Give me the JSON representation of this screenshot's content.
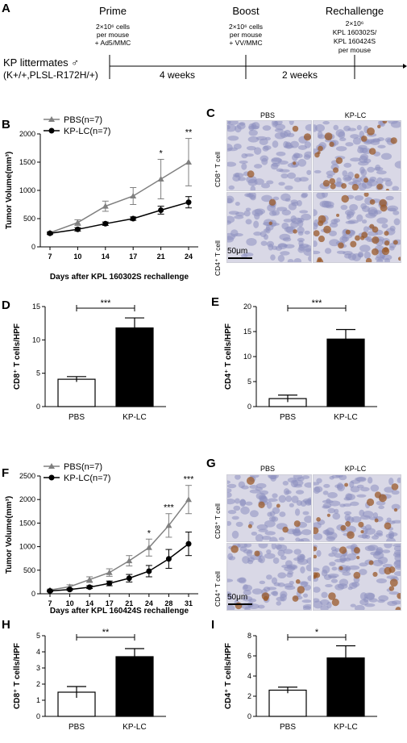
{
  "panels": {
    "A": "A",
    "B": "B",
    "C": "C",
    "D": "D",
    "E": "E",
    "F": "F",
    "G": "G",
    "H": "H",
    "I": "I"
  },
  "timeline": {
    "prime_title": "Prime",
    "prime_line1": "2×10⁶ cells",
    "prime_line2": "per mouse",
    "prime_line3": "+ Ad5/MMC",
    "boost_title": "Boost",
    "boost_line1": "2×10⁶ cells",
    "boost_line2": "per mouse",
    "boost_line3": "+ VV/MMC",
    "rechallenge_title": "Rechallenge",
    "rechallenge_line1": "2×10⁶",
    "rechallenge_line2": "KPL 160302S/",
    "rechallenge_line3": "KPL 160424S",
    "rechallenge_line4": "per mouse",
    "mice_label": "KP littermates ♂",
    "genotype": "(K+/+,PLSL-R172H/+)",
    "interval1": "4 weeks",
    "interval2": "2 weeks"
  },
  "ihc": {
    "C": {
      "col_pbs": "PBS",
      "col_kplc": "KP-LC",
      "row_cd8": "CD8⁺ T cell",
      "row_cd4": "CD4⁺ T cell",
      "scale": "50μm"
    },
    "G": {
      "col_pbs": "PBS",
      "col_kplc": "KP-LC",
      "row_cd8": "CD8⁺ T cell",
      "row_cd4": "CD4⁺ T cell",
      "scale": "50μm"
    }
  },
  "colors": {
    "pbs_line": "#808080",
    "kplc_line": "#000000",
    "stain_brown": "#9a5a2a",
    "stain_blue": "#8d8fc0"
  },
  "chart_data": [
    {
      "id": "B",
      "type": "line",
      "x": [
        7,
        10,
        14,
        17,
        21,
        24
      ],
      "xlabel": "Days after KPL 160302S rechallenge",
      "ylabel": "Tumor Volume(mm³)",
      "ylim": [
        0,
        2000
      ],
      "yticks": [
        0,
        500,
        1000,
        1500,
        2000
      ],
      "series": [
        {
          "name": "PBS(n=7)",
          "marker": "triangle",
          "values": [
            250,
            430,
            720,
            900,
            1200,
            1500
          ],
          "errors": [
            20,
            50,
            90,
            150,
            350,
            420
          ]
        },
        {
          "name": "KP-LC(n=7)",
          "marker": "circle",
          "values": [
            240,
            310,
            410,
            500,
            650,
            790
          ],
          "errors": [
            15,
            30,
            30,
            30,
            70,
            100
          ]
        }
      ],
      "significance": [
        {
          "x": 21,
          "label": "*"
        },
        {
          "x": 24,
          "label": "**"
        }
      ],
      "legend": "top-left"
    },
    {
      "id": "D",
      "type": "bar",
      "categories": [
        "PBS",
        "KP-LC"
      ],
      "values": [
        4.1,
        11.8
      ],
      "errors": [
        0.4,
        1.5
      ],
      "fills": [
        "#ffffff",
        "#000000"
      ],
      "ylabel": "CD8⁺ T cells/HPF",
      "ylim": [
        0,
        15
      ],
      "yticks": [
        0,
        5,
        10,
        15
      ],
      "significance": "***"
    },
    {
      "id": "E",
      "type": "bar",
      "categories": [
        "PBS",
        "KP-LC"
      ],
      "values": [
        1.6,
        13.5
      ],
      "errors": [
        0.7,
        1.9
      ],
      "fills": [
        "#ffffff",
        "#000000"
      ],
      "ylabel": "CD4⁺ T cells/HPF",
      "ylim": [
        0,
        20
      ],
      "yticks": [
        0,
        5,
        10,
        15,
        20
      ],
      "significance": "***"
    },
    {
      "id": "F",
      "type": "line",
      "x": [
        7,
        10,
        14,
        17,
        21,
        24,
        28,
        31
      ],
      "xlabel": "Days after KPL 160424S rechallenge",
      "ylabel": "Tumor Volume(mm³)",
      "ylim": [
        0,
        2500
      ],
      "yticks": [
        0,
        500,
        1000,
        1500,
        2000,
        2500
      ],
      "series": [
        {
          "name": "PBS(n=7)",
          "marker": "triangle",
          "values": [
            80,
            150,
            300,
            450,
            700,
            980,
            1450,
            2000
          ],
          "errors": [
            20,
            40,
            60,
            80,
            110,
            180,
            250,
            300
          ]
        },
        {
          "name": "KP-LC(n=7)",
          "marker": "circle",
          "values": [
            60,
            90,
            140,
            220,
            330,
            480,
            740,
            1060
          ],
          "errors": [
            15,
            20,
            30,
            50,
            80,
            120,
            200,
            250
          ]
        }
      ],
      "significance": [
        {
          "x": 24,
          "label": "*"
        },
        {
          "x": 28,
          "label": "***"
        },
        {
          "x": 31,
          "label": "***"
        }
      ],
      "legend": "top-left"
    },
    {
      "id": "H",
      "type": "bar",
      "categories": [
        "PBS",
        "KP-LC"
      ],
      "values": [
        1.5,
        3.7
      ],
      "errors": [
        0.35,
        0.5
      ],
      "fills": [
        "#ffffff",
        "#000000"
      ],
      "ylabel": "CD8⁺ T cells/HPF",
      "ylim": [
        0,
        5
      ],
      "yticks": [
        0,
        1,
        2,
        3,
        4,
        5
      ],
      "significance": "**"
    },
    {
      "id": "I",
      "type": "bar",
      "categories": [
        "PBS",
        "KP-LC"
      ],
      "values": [
        2.6,
        5.8
      ],
      "errors": [
        0.3,
        1.2
      ],
      "fills": [
        "#ffffff",
        "#000000"
      ],
      "ylabel": "CD4⁺ T cells/HPF",
      "ylim": [
        0,
        8
      ],
      "yticks": [
        0,
        2,
        4,
        6,
        8
      ],
      "significance": "*"
    }
  ]
}
